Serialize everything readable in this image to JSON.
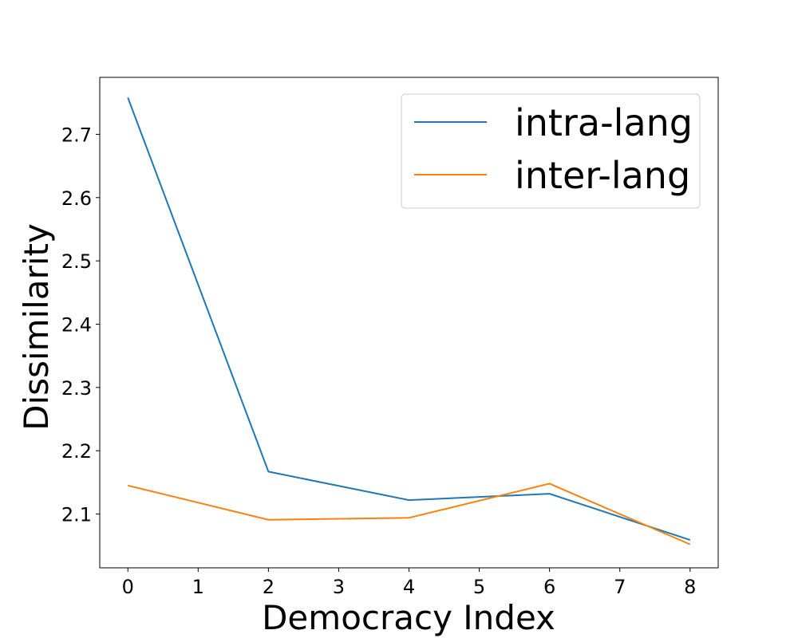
{
  "chart_data": {
    "type": "line",
    "title": "",
    "xlabel": "Democracy Index",
    "ylabel": "Dissimilarity",
    "xlim": [
      -0.4,
      8.4
    ],
    "ylim": [
      2.015,
      2.79
    ],
    "xticks": [
      0,
      1,
      2,
      3,
      4,
      5,
      6,
      7,
      8
    ],
    "yticks": [
      2.1,
      2.2,
      2.3,
      2.4,
      2.5,
      2.6,
      2.7
    ],
    "grid": false,
    "legend_position": "top-right",
    "series": [
      {
        "name": "intra-lang",
        "color": "#1f77b4",
        "x": [
          0,
          2,
          4,
          6,
          8
        ],
        "y": [
          2.758,
          2.167,
          2.122,
          2.132,
          2.059
        ]
      },
      {
        "name": "inter-lang",
        "color": "#ff7f0e",
        "x": [
          0,
          2,
          4,
          6,
          8
        ],
        "y": [
          2.145,
          2.091,
          2.094,
          2.148,
          2.052
        ]
      }
    ]
  }
}
